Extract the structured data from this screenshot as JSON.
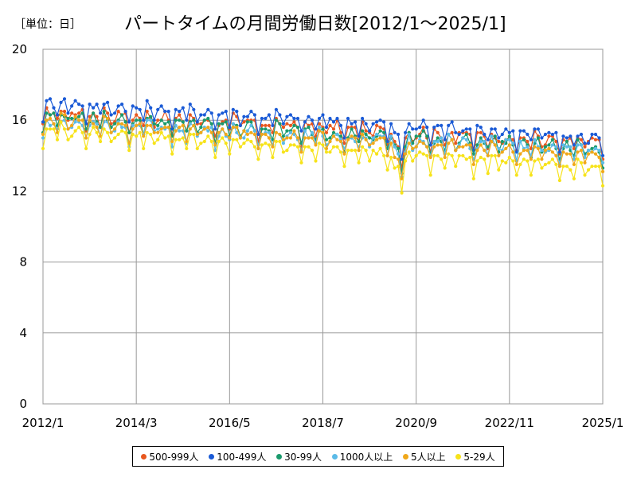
{
  "unit_label": "［単位：日］",
  "chart_data": {
    "type": "line",
    "title": "パートタイムの月間労働日数[2012/1～2025/1]",
    "ylim": [
      0,
      20
    ],
    "yticks": [
      0,
      4,
      8,
      12,
      16,
      20
    ],
    "x_start": "2012/1",
    "x_end": "2025/1",
    "x_tick_labels": [
      "2012/1",
      "2014/3",
      "2016/5",
      "2018/7",
      "2020/9",
      "2022/11",
      "2025/1"
    ],
    "grid": true,
    "legend_position": "bottom",
    "series": [
      {
        "name": "500-999人",
        "color": "#e8571e",
        "start": 16.4,
        "end": 14.6,
        "dip": 0.6,
        "noise": 0.25
      },
      {
        "name": "100-499人",
        "color": "#1a5ad6",
        "start": 16.9,
        "end": 14.9,
        "dip": 0.6,
        "noise": 0.25
      },
      {
        "name": "30-99人",
        "color": "#1a9a6c",
        "start": 16.2,
        "end": 14.3,
        "dip": 0.7,
        "noise": 0.25
      },
      {
        "name": "1000人以上",
        "color": "#5bbbe8",
        "start": 15.8,
        "end": 14.2,
        "dip": 0.7,
        "noise": 0.25
      },
      {
        "name": "5人以上",
        "color": "#f0a81a",
        "start": 15.9,
        "end": 13.9,
        "dip": 0.7,
        "noise": 0.2
      },
      {
        "name": "5-29人",
        "color": "#f7e31a",
        "start": 15.4,
        "end": 13.2,
        "dip": 0.8,
        "noise": 0.2
      }
    ]
  }
}
